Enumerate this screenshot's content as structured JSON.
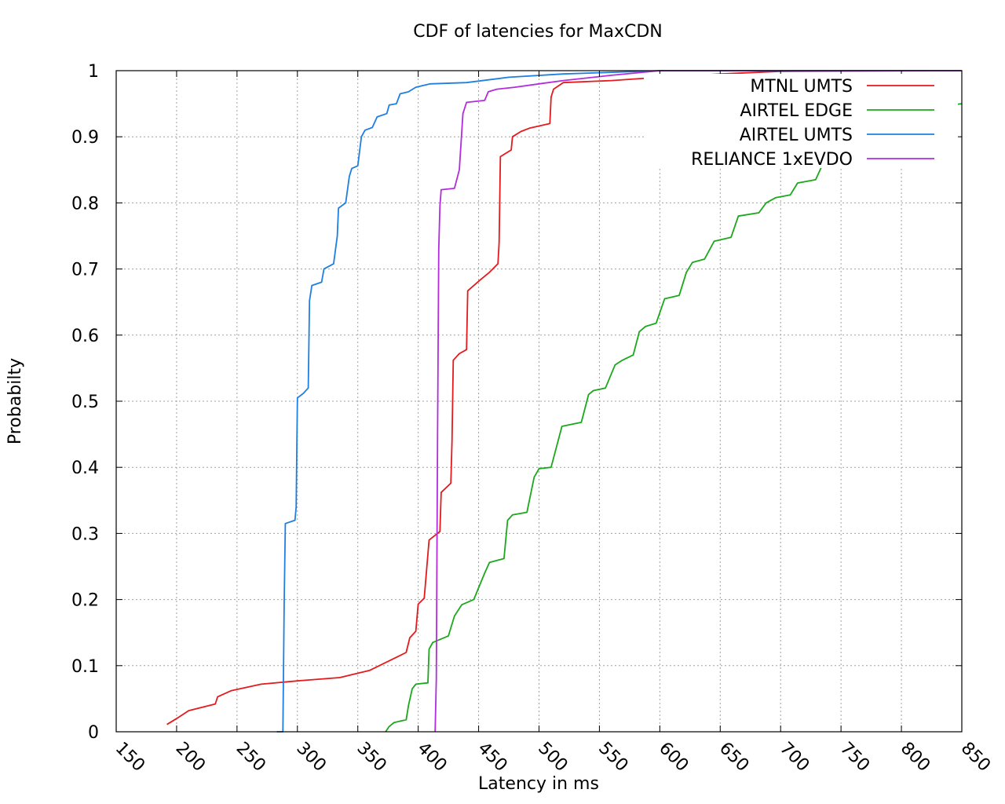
{
  "chart_data": {
    "type": "line",
    "title": "CDF of latencies for MaxCDN",
    "xlabel": "Latency in ms",
    "ylabel": "Probabilty",
    "xlim": [
      150,
      850
    ],
    "ylim": [
      0,
      1
    ],
    "x_ticks": [
      150,
      200,
      250,
      300,
      350,
      400,
      450,
      500,
      550,
      600,
      650,
      700,
      750,
      800,
      850
    ],
    "x_tick_labels": [
      "150",
      "200",
      "250",
      "300",
      "350",
      "400",
      "450",
      "500",
      "550",
      "600",
      "650",
      "700",
      "750",
      "800",
      "850"
    ],
    "y_ticks": [
      0,
      0.1,
      0.2,
      0.3,
      0.4,
      0.5,
      0.6,
      0.7,
      0.8,
      0.9,
      1
    ],
    "y_tick_labels": [
      "0",
      "0.1",
      "0.2",
      "0.3",
      "0.4",
      "0.5",
      "0.6",
      "0.7",
      "0.8",
      "0.9",
      "1"
    ],
    "grid": true,
    "legend_position": "top-right",
    "series": [
      {
        "name": "MTNL UMTS",
        "color": "#e41a1c",
        "points": [
          [
            192,
            0.011
          ],
          [
            200,
            0.02
          ],
          [
            210,
            0.032
          ],
          [
            232,
            0.042
          ],
          [
            234,
            0.053
          ],
          [
            245,
            0.062
          ],
          [
            270,
            0.072
          ],
          [
            300,
            0.077
          ],
          [
            335,
            0.082
          ],
          [
            360,
            0.093
          ],
          [
            390,
            0.12
          ],
          [
            393,
            0.142
          ],
          [
            398,
            0.152
          ],
          [
            400,
            0.193
          ],
          [
            405,
            0.202
          ],
          [
            409,
            0.29
          ],
          [
            418,
            0.303
          ],
          [
            419,
            0.362
          ],
          [
            427,
            0.376
          ],
          [
            428,
            0.44
          ],
          [
            429,
            0.562
          ],
          [
            434,
            0.572
          ],
          [
            440,
            0.578
          ],
          [
            441,
            0.667
          ],
          [
            451,
            0.683
          ],
          [
            459,
            0.695
          ],
          [
            466,
            0.708
          ],
          [
            467,
            0.74
          ],
          [
            468,
            0.87
          ],
          [
            477,
            0.88
          ],
          [
            478,
            0.9
          ],
          [
            485,
            0.908
          ],
          [
            492,
            0.913
          ],
          [
            509,
            0.92
          ],
          [
            510,
            0.96
          ],
          [
            512,
            0.972
          ],
          [
            520,
            0.982
          ],
          [
            560,
            0.985
          ],
          [
            600,
            0.99
          ],
          [
            650,
            0.995
          ],
          [
            700,
            0.999
          ],
          [
            850,
            1.0
          ]
        ]
      },
      {
        "name": "AIRTEL EDGE",
        "color": "#1ba81b",
        "points": [
          [
            373,
            0.0
          ],
          [
            376,
            0.008
          ],
          [
            380,
            0.014
          ],
          [
            390,
            0.018
          ],
          [
            392,
            0.04
          ],
          [
            395,
            0.065
          ],
          [
            398,
            0.072
          ],
          [
            408,
            0.074
          ],
          [
            409,
            0.125
          ],
          [
            412,
            0.135
          ],
          [
            425,
            0.145
          ],
          [
            430,
            0.175
          ],
          [
            436,
            0.192
          ],
          [
            446,
            0.2
          ],
          [
            455,
            0.24
          ],
          [
            459,
            0.256
          ],
          [
            471,
            0.262
          ],
          [
            474,
            0.32
          ],
          [
            478,
            0.328
          ],
          [
            490,
            0.332
          ],
          [
            496,
            0.385
          ],
          [
            500,
            0.398
          ],
          [
            510,
            0.4
          ],
          [
            519,
            0.462
          ],
          [
            535,
            0.468
          ],
          [
            541,
            0.51
          ],
          [
            545,
            0.516
          ],
          [
            555,
            0.52
          ],
          [
            563,
            0.555
          ],
          [
            569,
            0.562
          ],
          [
            578,
            0.57
          ],
          [
            583,
            0.605
          ],
          [
            588,
            0.613
          ],
          [
            597,
            0.618
          ],
          [
            604,
            0.655
          ],
          [
            616,
            0.66
          ],
          [
            622,
            0.695
          ],
          [
            627,
            0.71
          ],
          [
            637,
            0.715
          ],
          [
            645,
            0.742
          ],
          [
            659,
            0.748
          ],
          [
            665,
            0.78
          ],
          [
            682,
            0.785
          ],
          [
            688,
            0.8
          ],
          [
            696,
            0.808
          ],
          [
            708,
            0.812
          ],
          [
            714,
            0.83
          ],
          [
            729,
            0.835
          ],
          [
            734,
            0.855
          ],
          [
            740,
            0.86
          ],
          [
            757,
            0.865
          ],
          [
            762,
            0.89
          ],
          [
            775,
            0.895
          ],
          [
            782,
            0.905
          ],
          [
            792,
            0.912
          ],
          [
            800,
            0.92
          ],
          [
            810,
            0.928
          ],
          [
            820,
            0.935
          ],
          [
            830,
            0.94
          ],
          [
            840,
            0.948
          ],
          [
            850,
            0.95
          ]
        ]
      },
      {
        "name": "AIRTEL UMTS",
        "color": "#1f7fe0",
        "points": [
          [
            283,
            0.0
          ],
          [
            288,
            0.0
          ],
          [
            289,
            0.19
          ],
          [
            290,
            0.315
          ],
          [
            298,
            0.32
          ],
          [
            299,
            0.34
          ],
          [
            300,
            0.505
          ],
          [
            305,
            0.512
          ],
          [
            309,
            0.52
          ],
          [
            310,
            0.652
          ],
          [
            312,
            0.675
          ],
          [
            320,
            0.68
          ],
          [
            322,
            0.7
          ],
          [
            330,
            0.708
          ],
          [
            333,
            0.75
          ],
          [
            334,
            0.792
          ],
          [
            340,
            0.8
          ],
          [
            343,
            0.84
          ],
          [
            345,
            0.852
          ],
          [
            350,
            0.856
          ],
          [
            353,
            0.9
          ],
          [
            356,
            0.91
          ],
          [
            362,
            0.914
          ],
          [
            366,
            0.93
          ],
          [
            374,
            0.935
          ],
          [
            376,
            0.948
          ],
          [
            382,
            0.95
          ],
          [
            385,
            0.965
          ],
          [
            392,
            0.968
          ],
          [
            398,
            0.975
          ],
          [
            410,
            0.98
          ],
          [
            440,
            0.982
          ],
          [
            475,
            0.99
          ],
          [
            520,
            0.995
          ],
          [
            600,
            1.0
          ],
          [
            850,
            1.0
          ]
        ]
      },
      {
        "name": "RELIANCE 1xEVDO",
        "color": "#b22cdd",
        "points": [
          [
            414,
            0.0
          ],
          [
            415,
            0.08
          ],
          [
            416,
            0.45
          ],
          [
            417,
            0.73
          ],
          [
            418,
            0.795
          ],
          [
            419,
            0.82
          ],
          [
            430,
            0.822
          ],
          [
            434,
            0.85
          ],
          [
            437,
            0.935
          ],
          [
            440,
            0.952
          ],
          [
            455,
            0.955
          ],
          [
            458,
            0.968
          ],
          [
            465,
            0.972
          ],
          [
            480,
            0.975
          ],
          [
            500,
            0.98
          ],
          [
            520,
            0.985
          ],
          [
            560,
            0.993
          ],
          [
            600,
            1.0
          ],
          [
            850,
            1.0
          ]
        ]
      }
    ]
  }
}
